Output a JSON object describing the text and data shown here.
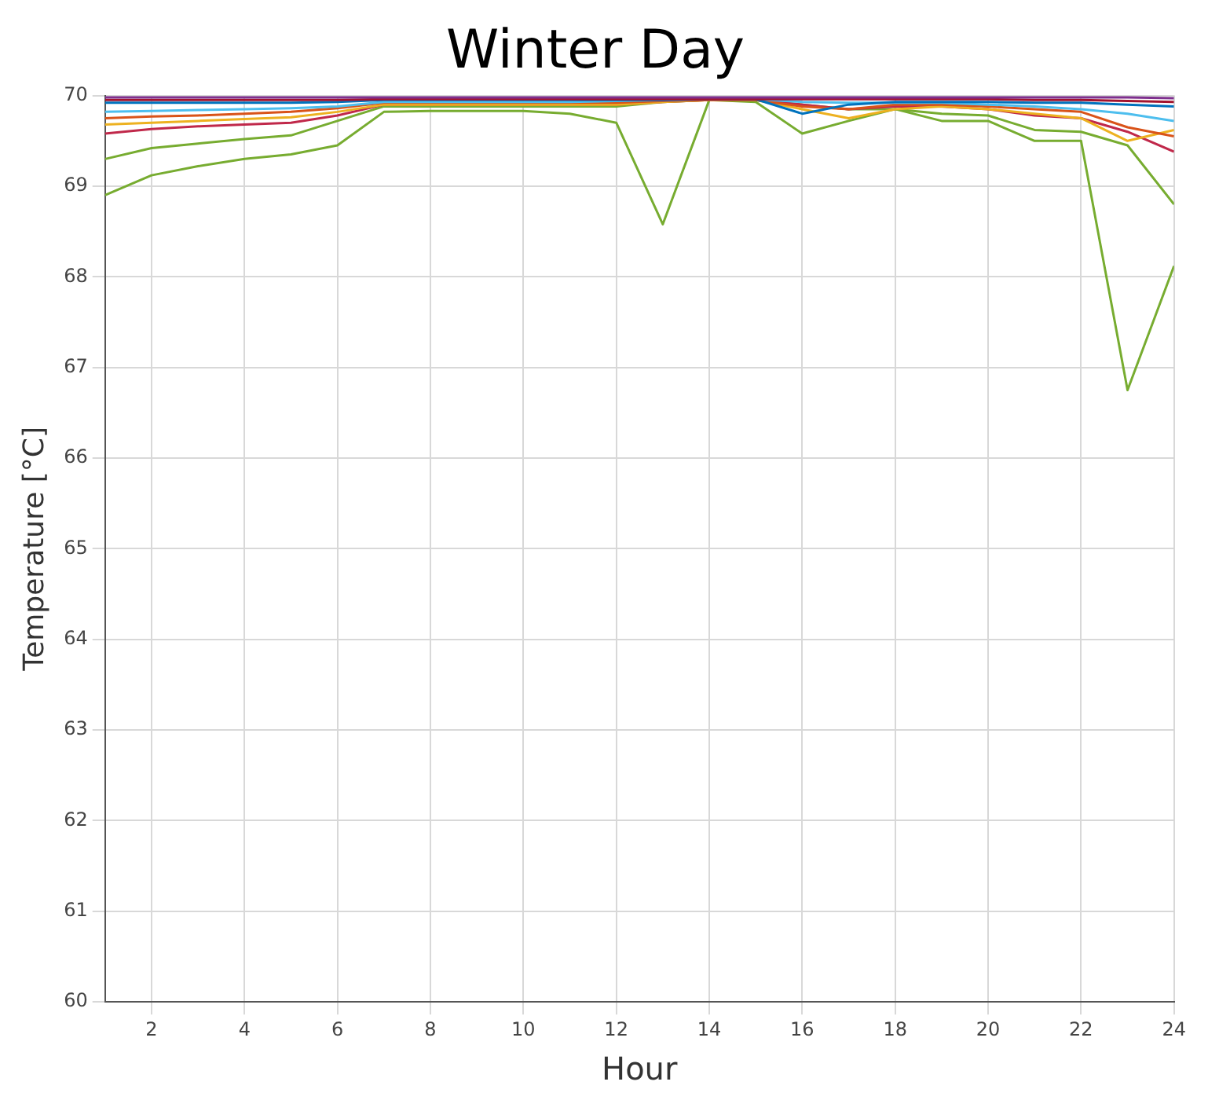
{
  "chart_data": {
    "type": "line",
    "title": "Winter Day",
    "xlabel": "Hour",
    "ylabel": "Temperature [°C]",
    "x": [
      1,
      2,
      3,
      4,
      5,
      6,
      7,
      8,
      9,
      10,
      11,
      12,
      13,
      14,
      15,
      16,
      17,
      18,
      19,
      20,
      21,
      22,
      23,
      24
    ],
    "xlim": [
      1,
      24
    ],
    "xticks": [
      2,
      4,
      6,
      8,
      10,
      12,
      14,
      16,
      18,
      20,
      22,
      24
    ],
    "ylim": [
      60,
      70
    ],
    "yticks": [
      60,
      61,
      62,
      63,
      64,
      65,
      66,
      67,
      68,
      69,
      70
    ],
    "grid": true,
    "legend": false,
    "marker": "none",
    "line_style": "solid",
    "series": [
      {
        "color": "#7e2f8e",
        "values": [
          69.98,
          69.98,
          69.98,
          69.98,
          69.98,
          69.98,
          69.98,
          69.98,
          69.98,
          69.98,
          69.98,
          69.98,
          69.98,
          69.98,
          69.98,
          69.98,
          69.98,
          69.98,
          69.98,
          69.98,
          69.98,
          69.98,
          69.98,
          69.97
        ]
      },
      {
        "color": "#a2142f",
        "values": [
          69.95,
          69.95,
          69.95,
          69.95,
          69.95,
          69.95,
          69.96,
          69.96,
          69.96,
          69.96,
          69.96,
          69.96,
          69.96,
          69.96,
          69.96,
          69.96,
          69.96,
          69.96,
          69.96,
          69.96,
          69.95,
          69.95,
          69.94,
          69.93
        ]
      },
      {
        "color": "#0072bd",
        "values": [
          69.92,
          69.92,
          69.92,
          69.92,
          69.92,
          69.93,
          69.95,
          69.95,
          69.95,
          69.95,
          69.95,
          69.95,
          69.95,
          69.96,
          69.96,
          69.8,
          69.9,
          69.93,
          69.93,
          69.93,
          69.92,
          69.92,
          69.9,
          69.88
        ]
      },
      {
        "color": "#4dbeee",
        "values": [
          69.82,
          69.83,
          69.84,
          69.85,
          69.86,
          69.88,
          69.93,
          69.93,
          69.93,
          69.93,
          69.93,
          69.94,
          69.95,
          69.96,
          69.96,
          69.93,
          69.92,
          69.92,
          69.92,
          69.9,
          69.88,
          69.85,
          69.8,
          69.72
        ]
      },
      {
        "color": "#d95319",
        "values": [
          69.75,
          69.77,
          69.78,
          69.8,
          69.82,
          69.86,
          69.92,
          69.92,
          69.92,
          69.92,
          69.92,
          69.92,
          69.94,
          69.95,
          69.95,
          69.88,
          69.85,
          69.9,
          69.9,
          69.88,
          69.85,
          69.82,
          69.65,
          69.55
        ]
      },
      {
        "color": "#edb120",
        "values": [
          69.68,
          69.7,
          69.72,
          69.74,
          69.76,
          69.82,
          69.9,
          69.9,
          69.9,
          69.9,
          69.9,
          69.9,
          69.93,
          69.95,
          69.95,
          69.85,
          69.75,
          69.85,
          69.88,
          69.85,
          69.8,
          69.75,
          69.5,
          69.62
        ]
      },
      {
        "color": "#c0284a",
        "values": [
          69.58,
          69.63,
          69.66,
          69.68,
          69.7,
          69.78,
          69.9,
          69.9,
          69.9,
          69.9,
          69.9,
          69.9,
          69.93,
          69.95,
          69.95,
          69.9,
          69.85,
          69.88,
          69.88,
          69.85,
          69.78,
          69.75,
          69.6,
          69.38
        ]
      },
      {
        "color": "#77ac30",
        "values": [
          69.3,
          69.42,
          69.47,
          69.52,
          69.56,
          69.72,
          69.88,
          69.88,
          69.88,
          69.88,
          69.88,
          69.88,
          69.93,
          69.95,
          69.95,
          69.9,
          69.85,
          69.85,
          69.8,
          69.78,
          69.62,
          69.6,
          69.45,
          68.8
        ]
      },
      {
        "color": "#77ac30",
        "values": [
          68.9,
          69.12,
          69.22,
          69.3,
          69.35,
          69.45,
          69.82,
          69.83,
          69.83,
          69.83,
          69.8,
          69.7,
          68.58,
          69.95,
          69.93,
          69.58,
          69.72,
          69.85,
          69.72,
          69.72,
          69.5,
          69.5,
          66.75,
          68.12
        ]
      }
    ]
  }
}
